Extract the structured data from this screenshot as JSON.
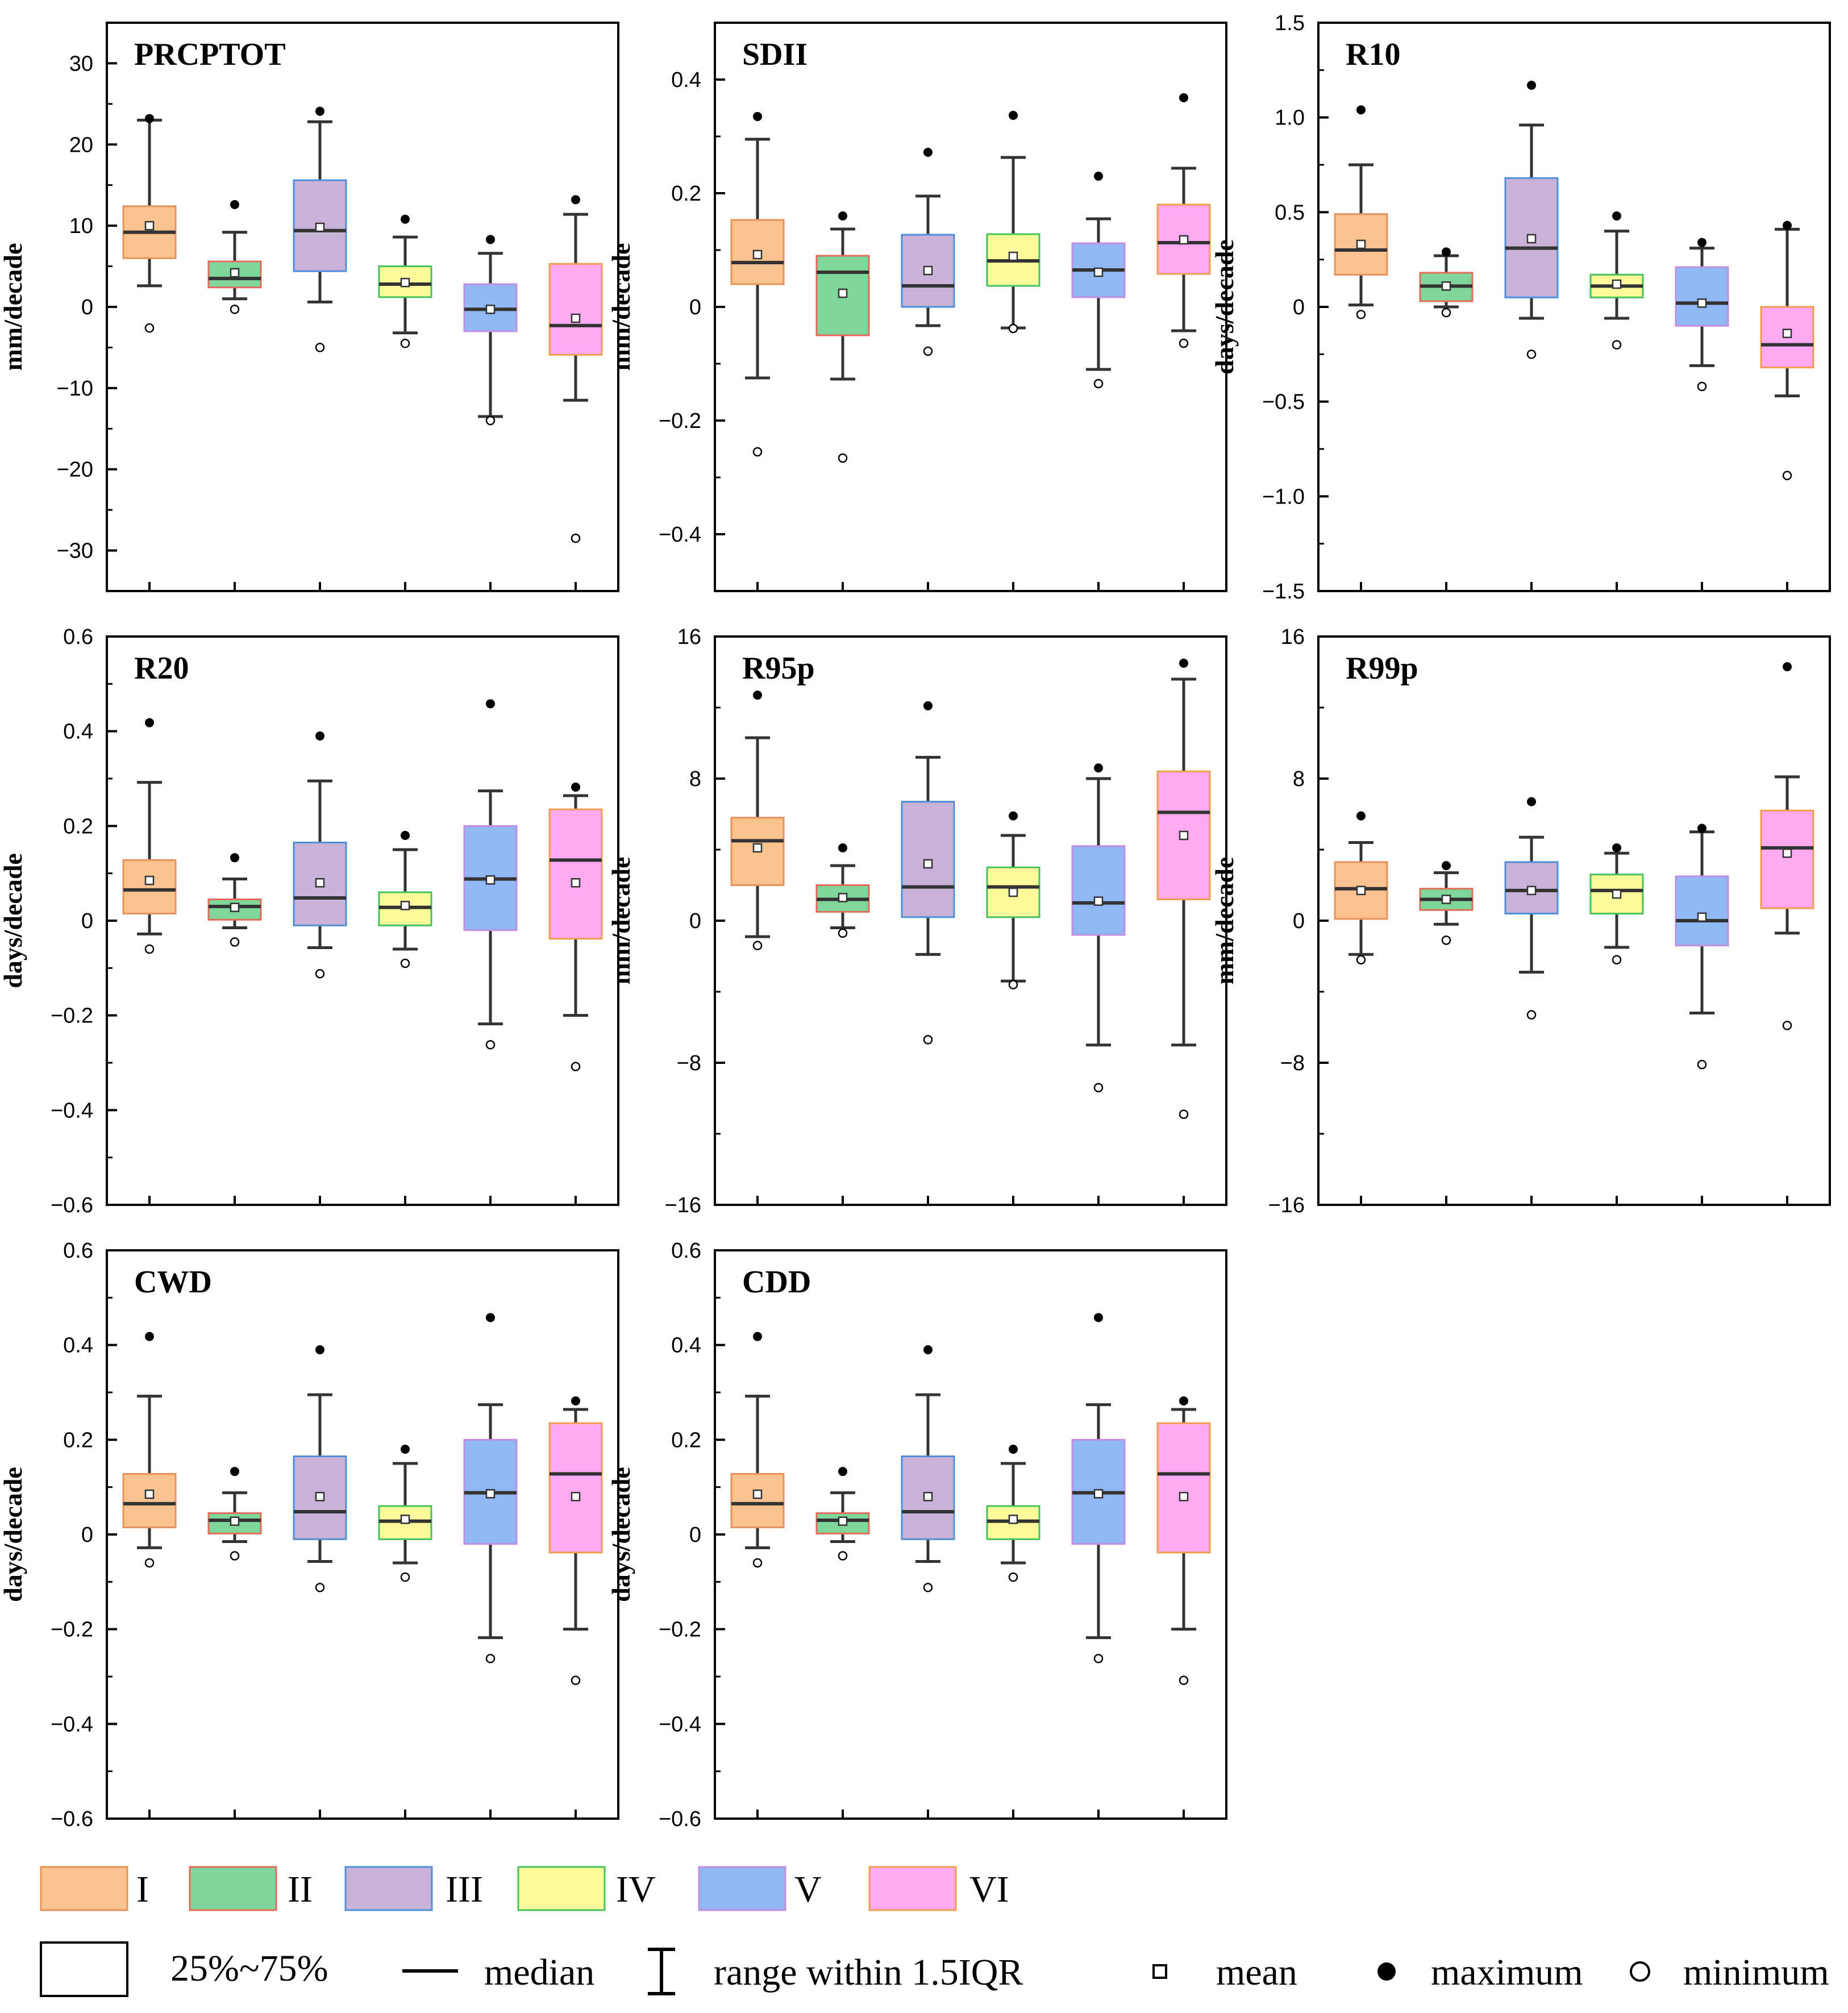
{
  "chart_data": [
    {
      "type": "box",
      "title": "PRCPTOT",
      "ylabel": "mm/decade",
      "ylim": [
        -35,
        35
      ],
      "yticks": [
        -30,
        -20,
        -10,
        0,
        10,
        20,
        30
      ],
      "ytick_labels": [
        "−30",
        "−20",
        "−10",
        "0",
        "10",
        "20",
        "30"
      ],
      "categories": [
        "I",
        "II",
        "III",
        "IV",
        "V",
        "VI"
      ],
      "boxes": [
        {
          "q1": 6,
          "median": 9.2,
          "q3": 12.4,
          "whisker_low": 2.6,
          "whisker_high": 23,
          "mean": 10,
          "max": 23.2,
          "min": -2.6
        },
        {
          "q1": 2.4,
          "median": 3.5,
          "q3": 5.6,
          "whisker_low": 1.0,
          "whisker_high": 9.2,
          "mean": 4.2,
          "max": 12.6,
          "min": -0.3
        },
        {
          "q1": 4.4,
          "median": 9.4,
          "q3": 15.6,
          "whisker_low": 0.6,
          "whisker_high": 22.8,
          "mean": 9.8,
          "max": 24.1,
          "min": -5.0
        },
        {
          "q1": 1.2,
          "median": 2.8,
          "q3": 5.0,
          "whisker_low": -3.2,
          "whisker_high": 8.6,
          "mean": 3.0,
          "max": 10.8,
          "min": -4.5
        },
        {
          "q1": -3.0,
          "median": -0.3,
          "q3": 2.8,
          "whisker_low": -13.5,
          "whisker_high": 6.6,
          "mean": -0.3,
          "max": 8.3,
          "min": -14.0
        },
        {
          "q1": -5.9,
          "median": -2.3,
          "q3": 5.3,
          "whisker_low": -11.5,
          "whisker_high": 11.4,
          "mean": -1.4,
          "max": 13.2,
          "min": -28.5
        }
      ]
    },
    {
      "type": "box",
      "title": "SDII",
      "ylabel": "mm/decade",
      "ylim": [
        -0.5,
        0.5
      ],
      "yticks": [
        -0.4,
        -0.2,
        0,
        0.2,
        0.4
      ],
      "ytick_labels": [
        "−0.4",
        "−0.2",
        "0",
        "0.2",
        "0.4"
      ],
      "categories": [
        "I",
        "II",
        "III",
        "IV",
        "V",
        "VI"
      ],
      "boxes": [
        {
          "q1": 0.04,
          "median": 0.078,
          "q3": 0.153,
          "whisker_low": -0.125,
          "whisker_high": 0.295,
          "mean": 0.092,
          "max": 0.335,
          "min": -0.255
        },
        {
          "q1": -0.05,
          "median": 0.061,
          "q3": 0.09,
          "whisker_low": -0.127,
          "whisker_high": 0.137,
          "mean": 0.024,
          "max": 0.16,
          "min": -0.266
        },
        {
          "q1": 0.0,
          "median": 0.037,
          "q3": 0.127,
          "whisker_low": -0.033,
          "whisker_high": 0.195,
          "mean": 0.064,
          "max": 0.272,
          "min": -0.078
        },
        {
          "q1": 0.037,
          "median": 0.081,
          "q3": 0.128,
          "whisker_low": -0.037,
          "whisker_high": 0.263,
          "mean": 0.089,
          "max": 0.337,
          "min": -0.038
        },
        {
          "q1": 0.017,
          "median": 0.065,
          "q3": 0.112,
          "whisker_low": -0.11,
          "whisker_high": 0.155,
          "mean": 0.061,
          "max": 0.23,
          "min": -0.135
        },
        {
          "q1": 0.058,
          "median": 0.113,
          "q3": 0.18,
          "whisker_low": -0.042,
          "whisker_high": 0.244,
          "mean": 0.118,
          "max": 0.368,
          "min": -0.064
        }
      ]
    },
    {
      "type": "box",
      "title": "R10",
      "ylabel": "days/decade",
      "ylim": [
        -1.5,
        1.5
      ],
      "yticks": [
        -1.5,
        -1.0,
        -0.5,
        0,
        0.5,
        1.0,
        1.5
      ],
      "ytick_labels": [
        "−1.5",
        "−1.0",
        "−0.5",
        "0",
        "0.5",
        "1.0",
        "1.5"
      ],
      "categories": [
        "I",
        "II",
        "III",
        "IV",
        "V",
        "VI"
      ],
      "boxes": [
        {
          "q1": 0.17,
          "median": 0.3,
          "q3": 0.49,
          "whisker_low": 0.01,
          "whisker_high": 0.75,
          "mean": 0.33,
          "max": 1.04,
          "min": -0.04
        },
        {
          "q1": 0.03,
          "median": 0.11,
          "q3": 0.18,
          "whisker_low": 0.0,
          "whisker_high": 0.27,
          "mean": 0.11,
          "max": 0.29,
          "min": -0.03
        },
        {
          "q1": 0.05,
          "median": 0.31,
          "q3": 0.68,
          "whisker_low": -0.06,
          "whisker_high": 0.96,
          "mean": 0.36,
          "max": 1.17,
          "min": -0.25
        },
        {
          "q1": 0.05,
          "median": 0.11,
          "q3": 0.17,
          "whisker_low": -0.06,
          "whisker_high": 0.4,
          "mean": 0.12,
          "max": 0.48,
          "min": -0.2
        },
        {
          "q1": -0.1,
          "median": 0.02,
          "q3": 0.21,
          "whisker_low": -0.31,
          "whisker_high": 0.31,
          "mean": 0.02,
          "max": 0.34,
          "min": -0.42
        },
        {
          "q1": -0.32,
          "median": -0.2,
          "q3": 0.0,
          "whisker_low": -0.47,
          "whisker_high": 0.41,
          "mean": -0.14,
          "max": 0.43,
          "min": -0.89
        }
      ]
    },
    {
      "type": "box",
      "title": "R20",
      "ylabel": "days/decade",
      "ylim": [
        -0.6,
        0.6
      ],
      "yticks": [
        -0.6,
        -0.4,
        -0.2,
        0,
        0.2,
        0.4,
        0.6
      ],
      "ytick_labels": [
        "−0.6",
        "−0.4",
        "−0.2",
        "0",
        "0.2",
        "0.4",
        "0.6"
      ],
      "categories": [
        "I",
        "II",
        "III",
        "IV",
        "V",
        "VI"
      ],
      "boxes": [
        {
          "q1": 0.015,
          "median": 0.065,
          "q3": 0.128,
          "whisker_low": -0.028,
          "whisker_high": 0.292,
          "mean": 0.085,
          "max": 0.418,
          "min": -0.06
        },
        {
          "q1": 0.002,
          "median": 0.03,
          "q3": 0.045,
          "whisker_low": -0.015,
          "whisker_high": 0.088,
          "mean": 0.028,
          "max": 0.133,
          "min": -0.045
        },
        {
          "q1": -0.01,
          "median": 0.048,
          "q3": 0.165,
          "whisker_low": -0.057,
          "whisker_high": 0.295,
          "mean": 0.08,
          "max": 0.39,
          "min": -0.112
        },
        {
          "q1": -0.01,
          "median": 0.028,
          "q3": 0.06,
          "whisker_low": -0.06,
          "whisker_high": 0.15,
          "mean": 0.032,
          "max": 0.18,
          "min": -0.09
        },
        {
          "q1": -0.02,
          "median": 0.088,
          "q3": 0.2,
          "whisker_low": -0.218,
          "whisker_high": 0.274,
          "mean": 0.086,
          "max": 0.458,
          "min": -0.262
        },
        {
          "q1": -0.038,
          "median": 0.128,
          "q3": 0.235,
          "whisker_low": -0.2,
          "whisker_high": 0.264,
          "mean": 0.08,
          "max": 0.282,
          "min": -0.308
        }
      ]
    },
    {
      "type": "box",
      "title": "R95p",
      "ylabel": "mm/decade",
      "ylim": [
        -16,
        16
      ],
      "yticks": [
        -16,
        -8,
        0,
        8,
        16
      ],
      "ytick_labels": [
        "−16",
        "−8",
        "0",
        "8",
        "16"
      ],
      "categories": [
        "I",
        "II",
        "III",
        "IV",
        "V",
        "VI"
      ],
      "boxes": [
        {
          "q1": 2.0,
          "median": 4.5,
          "q3": 5.8,
          "whisker_low": -0.9,
          "whisker_high": 10.3,
          "mean": 4.1,
          "max": 12.7,
          "min": -1.4
        },
        {
          "q1": 0.5,
          "median": 1.2,
          "q3": 2.0,
          "whisker_low": -0.4,
          "whisker_high": 3.1,
          "mean": 1.3,
          "max": 4.1,
          "min": -0.7
        },
        {
          "q1": 0.2,
          "median": 1.9,
          "q3": 6.7,
          "whisker_low": -1.9,
          "whisker_high": 9.2,
          "mean": 3.2,
          "max": 12.1,
          "min": -6.7
        },
        {
          "q1": 0.2,
          "median": 1.9,
          "q3": 3.0,
          "whisker_low": -3.4,
          "whisker_high": 4.8,
          "mean": 1.6,
          "max": 5.9,
          "min": -3.6
        },
        {
          "q1": -0.8,
          "median": 1.0,
          "q3": 4.2,
          "whisker_low": -7.0,
          "whisker_high": 8.0,
          "mean": 1.1,
          "max": 8.6,
          "min": -9.4
        },
        {
          "q1": 1.2,
          "median": 6.1,
          "q3": 8.4,
          "whisker_low": -7.0,
          "whisker_high": 13.6,
          "mean": 4.8,
          "max": 14.5,
          "min": -10.9
        }
      ]
    },
    {
      "type": "box",
      "title": "R99p",
      "ylabel": "mm/decade",
      "ylim": [
        -16,
        16
      ],
      "yticks": [
        -16,
        -8,
        0,
        8,
        16
      ],
      "ytick_labels": [
        "−16",
        "−8",
        "0",
        "8",
        "16"
      ],
      "categories": [
        "I",
        "II",
        "III",
        "IV",
        "V",
        "VI"
      ],
      "boxes": [
        {
          "q1": 0.1,
          "median": 1.8,
          "q3": 3.3,
          "whisker_low": -1.9,
          "whisker_high": 4.4,
          "mean": 1.7,
          "max": 5.9,
          "min": -2.2
        },
        {
          "q1": 0.6,
          "median": 1.2,
          "q3": 1.8,
          "whisker_low": -0.2,
          "whisker_high": 2.7,
          "mean": 1.2,
          "max": 3.1,
          "min": -1.1
        },
        {
          "q1": 0.4,
          "median": 1.7,
          "q3": 3.3,
          "whisker_low": -2.9,
          "whisker_high": 4.7,
          "mean": 1.7,
          "max": 6.7,
          "min": -5.3
        },
        {
          "q1": 0.4,
          "median": 1.7,
          "q3": 2.6,
          "whisker_low": -1.5,
          "whisker_high": 3.8,
          "mean": 1.5,
          "max": 4.1,
          "min": -2.2
        },
        {
          "q1": -1.4,
          "median": 0.0,
          "q3": 2.5,
          "whisker_low": -5.2,
          "whisker_high": 5.0,
          "mean": 0.2,
          "max": 5.2,
          "min": -8.1
        },
        {
          "q1": 0.7,
          "median": 4.1,
          "q3": 6.2,
          "whisker_low": -0.7,
          "whisker_high": 8.1,
          "mean": 3.8,
          "max": 14.3,
          "min": -5.9
        }
      ]
    },
    {
      "type": "box",
      "title": "CWD",
      "ylabel": "days/decade",
      "ylim": [
        -0.6,
        0.6
      ],
      "yticks": [
        -0.6,
        -0.4,
        -0.2,
        0,
        0.2,
        0.4,
        0.6
      ],
      "ytick_labels": [
        "−0.6",
        "−0.4",
        "−0.2",
        "0",
        "0.2",
        "0.4",
        "0.6"
      ],
      "categories": [
        "I",
        "II",
        "III",
        "IV",
        "V",
        "VI"
      ],
      "boxes": [
        {
          "q1": 0.015,
          "median": 0.065,
          "q3": 0.128,
          "whisker_low": -0.028,
          "whisker_high": 0.292,
          "mean": 0.085,
          "max": 0.418,
          "min": -0.06
        },
        {
          "q1": 0.002,
          "median": 0.03,
          "q3": 0.045,
          "whisker_low": -0.015,
          "whisker_high": 0.088,
          "mean": 0.028,
          "max": 0.133,
          "min": -0.045
        },
        {
          "q1": -0.01,
          "median": 0.048,
          "q3": 0.165,
          "whisker_low": -0.057,
          "whisker_high": 0.295,
          "mean": 0.08,
          "max": 0.39,
          "min": -0.112
        },
        {
          "q1": -0.01,
          "median": 0.028,
          "q3": 0.06,
          "whisker_low": -0.06,
          "whisker_high": 0.15,
          "mean": 0.032,
          "max": 0.18,
          "min": -0.09
        },
        {
          "q1": -0.02,
          "median": 0.088,
          "q3": 0.2,
          "whisker_low": -0.218,
          "whisker_high": 0.274,
          "mean": 0.086,
          "max": 0.458,
          "min": -0.262
        },
        {
          "q1": -0.038,
          "median": 0.128,
          "q3": 0.235,
          "whisker_low": -0.2,
          "whisker_high": 0.264,
          "mean": 0.08,
          "max": 0.282,
          "min": -0.308
        }
      ]
    },
    {
      "type": "box",
      "title": "CDD",
      "ylabel": "days/decade",
      "ylim": [
        -0.6,
        0.6
      ],
      "yticks": [
        -0.6,
        -0.4,
        -0.2,
        0,
        0.2,
        0.4,
        0.6
      ],
      "ytick_labels": [
        "−0.6",
        "−0.4",
        "−0.2",
        "0",
        "0.2",
        "0.4",
        "0.6"
      ],
      "categories": [
        "I",
        "II",
        "III",
        "IV",
        "V",
        "VI"
      ],
      "boxes": [
        {
          "q1": 0.015,
          "median": 0.065,
          "q3": 0.128,
          "whisker_low": -0.028,
          "whisker_high": 0.292,
          "mean": 0.085,
          "max": 0.418,
          "min": -0.06
        },
        {
          "q1": 0.002,
          "median": 0.03,
          "q3": 0.045,
          "whisker_low": -0.015,
          "whisker_high": 0.088,
          "mean": 0.028,
          "max": 0.133,
          "min": -0.045
        },
        {
          "q1": -0.01,
          "median": 0.048,
          "q3": 0.165,
          "whisker_low": -0.057,
          "whisker_high": 0.295,
          "mean": 0.08,
          "max": 0.39,
          "min": -0.112
        },
        {
          "q1": -0.01,
          "median": 0.028,
          "q3": 0.06,
          "whisker_low": -0.06,
          "whisker_high": 0.15,
          "mean": 0.032,
          "max": 0.18,
          "min": -0.09
        },
        {
          "q1": -0.02,
          "median": 0.088,
          "q3": 0.2,
          "whisker_low": -0.218,
          "whisker_high": 0.274,
          "mean": 0.086,
          "max": 0.458,
          "min": -0.262
        },
        {
          "q1": -0.038,
          "median": 0.128,
          "q3": 0.235,
          "whisker_low": -0.2,
          "whisker_high": 0.264,
          "mean": 0.08,
          "max": 0.282,
          "min": -0.308
        }
      ]
    }
  ],
  "legend": {
    "regions": [
      {
        "label": "I",
        "fill": "#f9c28f",
        "stroke": "#e8915a"
      },
      {
        "label": "II",
        "fill": "#7fd69b",
        "stroke": "#e36b5a"
      },
      {
        "label": "III",
        "fill": "#c9b2d8",
        "stroke": "#4f8fd9"
      },
      {
        "label": "IV",
        "fill": "#fbfb9b",
        "stroke": "#46c25a"
      },
      {
        "label": "V",
        "fill": "#8fb8f5",
        "stroke": "#c38ee0"
      },
      {
        "label": "VI",
        "fill": "#ffaaf2",
        "stroke": "#f39b4f"
      }
    ],
    "box_label": "25%~75%",
    "median_label": "median",
    "range_label": "range within 1.5IQR",
    "mean_label": "mean",
    "max_label": "maximum",
    "min_label": "minimum"
  }
}
